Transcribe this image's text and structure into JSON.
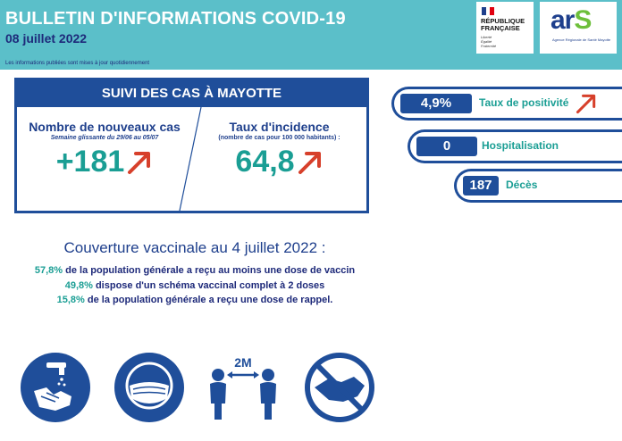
{
  "header": {
    "title": "BULLETIN D'INFORMATIONS COVID-19",
    "date": "08 juillet 2022",
    "note": "Les informations publiées sont mises à jour quotidiennement"
  },
  "logos": {
    "rf_line1": "RÉPUBLIQUE",
    "rf_line2": "FRANÇAISE",
    "rf_motto1": "Liberté",
    "rf_motto2": "Égalité",
    "rf_motto3": "Fraternité",
    "ars_main": "ar",
    "ars_s": "S",
    "ars_sub": "Agence Régionale de Santé Mayotte"
  },
  "cases": {
    "heading": "SUIVI DES CAS À MAYOTTE",
    "new_cases_label": "Nombre de nouveaux cas",
    "new_cases_period": "Semaine glissante du 29/06 au 05/07",
    "new_cases_value": "+181",
    "incidence_label": "Taux d'incidence",
    "incidence_sub": "(nombre de cas pour 100 000 habitants) :",
    "incidence_value": "64,8"
  },
  "stats": [
    {
      "value": "4,9%",
      "label": "Taux de positivité"
    },
    {
      "value": "0",
      "label": "Hospitalisation"
    },
    {
      "value": "187",
      "label": "Décès"
    }
  ],
  "vaccination": {
    "title": "Couverture vaccinale au 4 juillet 2022 :",
    "lines": [
      {
        "pct": "57,8%",
        "text": " de la population générale a reçu au moins une dose de vaccin"
      },
      {
        "pct": "49,8%",
        "text": " dispose d'un schéma vaccinal complet à 2 doses"
      },
      {
        "pct": "15,8%",
        "text": " de la population générale a reçu une dose de rappel."
      }
    ]
  },
  "gestures": {
    "distance_label": "2M"
  },
  "colors": {
    "header_bg": "#5bbfc9",
    "primary_blue": "#1f4e9a",
    "teal": "#1a9e94",
    "arrow_red": "#d7402b"
  }
}
